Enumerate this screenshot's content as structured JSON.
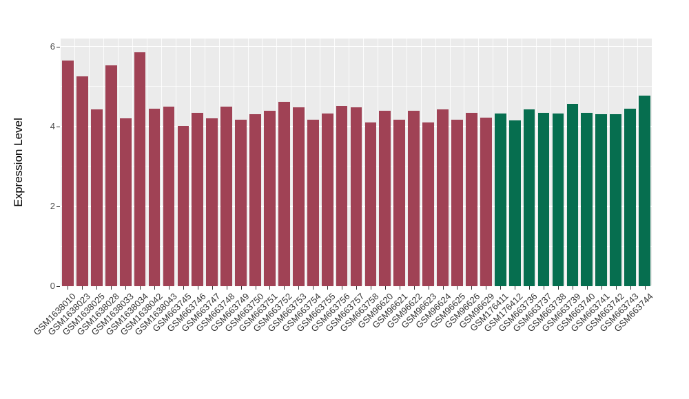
{
  "chart_data": {
    "type": "bar",
    "title": "",
    "xlabel": "",
    "ylabel": "Expression Level",
    "ylim": [
      0,
      6.2
    ],
    "yticks": [
      0,
      2,
      4,
      6
    ],
    "minor_yticks": [
      1,
      3,
      5
    ],
    "grid": true,
    "legend": "none",
    "panel_background": "#EBEBEB",
    "gridline_color": "#FFFFFF",
    "categories": [
      "GSM1638010",
      "GSM1638023",
      "GSM1638025",
      "GSM1638028",
      "GSM1638033",
      "GSM1638034",
      "GSM1638042",
      "GSM1638043",
      "GSM663745",
      "GSM663746",
      "GSM663747",
      "GSM663748",
      "GSM663749",
      "GSM663750",
      "GSM663751",
      "GSM663752",
      "GSM663753",
      "GSM663754",
      "GSM663755",
      "GSM663756",
      "GSM663757",
      "GSM663758",
      "GSM96620",
      "GSM96621",
      "GSM96622",
      "GSM96623",
      "GSM96624",
      "GSM96625",
      "GSM96626",
      "GSM96629",
      "GSM176411",
      "GSM176412",
      "GSM663736",
      "GSM663737",
      "GSM663738",
      "GSM663739",
      "GSM663740",
      "GSM663741",
      "GSM663742",
      "GSM663743",
      "GSM663744"
    ],
    "values": [
      5.65,
      5.25,
      4.42,
      5.52,
      4.2,
      5.85,
      4.44,
      4.5,
      4.02,
      4.34,
      4.2,
      4.5,
      4.16,
      4.3,
      4.4,
      4.62,
      4.47,
      4.16,
      4.32,
      4.52,
      4.47,
      4.1,
      4.4,
      4.16,
      4.4,
      4.1,
      4.42,
      4.16,
      4.34,
      4.22,
      4.32,
      4.15,
      4.42,
      4.34,
      4.32,
      4.57,
      4.34,
      4.3,
      4.3,
      4.45,
      4.77
    ],
    "groups": [
      "maroon",
      "maroon",
      "maroon",
      "maroon",
      "maroon",
      "maroon",
      "maroon",
      "maroon",
      "maroon",
      "maroon",
      "maroon",
      "maroon",
      "maroon",
      "maroon",
      "maroon",
      "maroon",
      "maroon",
      "maroon",
      "maroon",
      "maroon",
      "maroon",
      "maroon",
      "maroon",
      "maroon",
      "maroon",
      "maroon",
      "maroon",
      "maroon",
      "maroon",
      "maroon",
      "green",
      "green",
      "green",
      "green",
      "green",
      "green",
      "green",
      "green",
      "green",
      "green",
      "green"
    ],
    "group_colors": {
      "maroon": "#A04255",
      "green": "#066E4F"
    }
  }
}
